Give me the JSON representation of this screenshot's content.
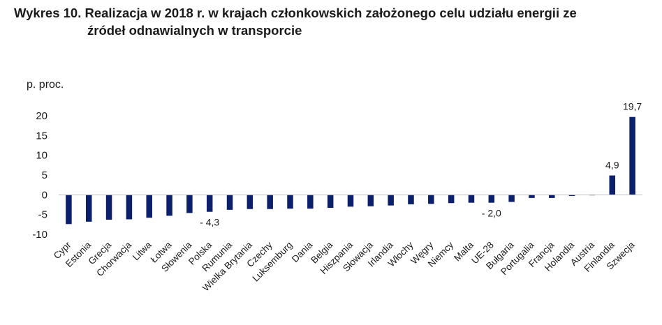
{
  "title_line1": "Wykres 10. Realizacja w 2018 r. w krajach członkowskich założonego celu udziału energii ze",
  "title_line2": "źródeł odnawialnych w transporcie",
  "chart_data": {
    "type": "bar",
    "title": "Wykres 10. Realizacja w 2018 r. w krajach członkowskich założonego celu udziału energii ze źródeł odnawialnych w transporcie",
    "ylabel": "p. proc.",
    "xlabel": "",
    "ylim": [
      -10,
      20
    ],
    "yticks": [
      20,
      15,
      10,
      5,
      0,
      -5,
      -10
    ],
    "grid": false,
    "bar_color": "#0b1f6b",
    "categories": [
      "Cypr",
      "Estonia",
      "Grecja",
      "Chorwacja",
      "Litwa",
      "Łotwa",
      "Słowenia",
      "Polska",
      "Rumunia",
      "Wielka Brytania",
      "Czechy",
      "Luksemburg",
      "Dania",
      "Belgia",
      "Hiszpania",
      "Słowacja",
      "Irlandia",
      "Włochy",
      "Węgry",
      "Niemcy",
      "Malta",
      "UE-28",
      "Bułgaria",
      "Portugalia",
      "Francja",
      "Holandia",
      "Austria",
      "Finlandia",
      "Szwecja"
    ],
    "values": [
      -7.4,
      -6.8,
      -6.3,
      -6.2,
      -5.8,
      -5.3,
      -4.6,
      -4.3,
      -3.8,
      -3.6,
      -3.6,
      -3.5,
      -3.5,
      -3.3,
      -3.0,
      -2.9,
      -2.7,
      -2.4,
      -2.3,
      -2.1,
      -2.0,
      -2.0,
      -1.8,
      -0.8,
      -0.8,
      -0.3,
      -0.1,
      4.9,
      19.7
    ],
    "data_labels": [
      {
        "category": "Polska",
        "text": "- 4,3"
      },
      {
        "category": "UE-28",
        "text": "- 2,0"
      },
      {
        "category": "Finlandia",
        "text": "4,9"
      },
      {
        "category": "Szwecja",
        "text": "19,7"
      }
    ]
  }
}
